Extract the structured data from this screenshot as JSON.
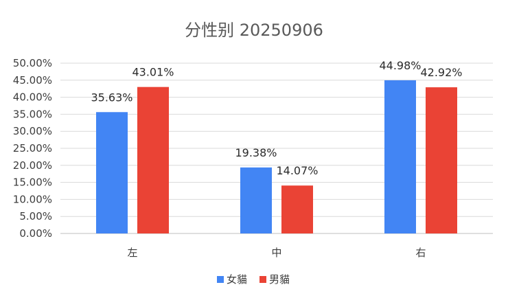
{
  "chart_data": {
    "type": "bar",
    "title": "分性别 20250906",
    "categories": [
      "左",
      "中",
      "右"
    ],
    "series": [
      {
        "name": "女貓",
        "values": [
          35.63,
          19.38,
          44.98
        ],
        "color": "#4285f4"
      },
      {
        "name": "男貓",
        "values": [
          43.01,
          14.07,
          42.92
        ],
        "color": "#ea4335"
      }
    ],
    "data_labels": [
      [
        "35.63%",
        "19.38%",
        "44.98%"
      ],
      [
        "43.01%",
        "14.07%",
        "42.92%"
      ]
    ],
    "ylim": [
      0,
      50
    ],
    "yticks": [
      0,
      5,
      10,
      15,
      20,
      25,
      30,
      35,
      40,
      45,
      50
    ],
    "ytick_labels": [
      "0.00%",
      "5.00%",
      "10.00%",
      "15.00%",
      "20.00%",
      "25.00%",
      "30.00%",
      "35.00%",
      "40.00%",
      "45.00%",
      "50.00%"
    ],
    "grid": true,
    "legend_position": "bottom"
  }
}
